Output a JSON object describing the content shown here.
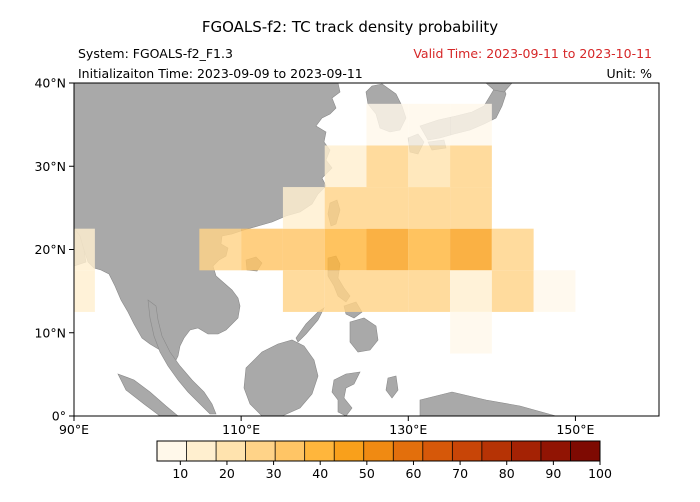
{
  "title": "FGOALS-f2: TC track density probability",
  "system": "System: FGOALS-f2_F1.3",
  "valid_time": "Valid Time: 2023-09-11 to 2023-10-11",
  "init_time": "Initializaiton Time: 2023-09-09 to 2023-09-11",
  "unit": "Unit: %",
  "colors": {
    "land": "#a9a9a9",
    "valid_time": "#d62728"
  },
  "chart_data": {
    "type": "heatmap",
    "x_axis": {
      "range": [
        90,
        160
      ],
      "ticks": [
        90,
        110,
        130,
        150
      ],
      "tick_labels": [
        "90°E",
        "110°E",
        "130°E",
        "150°E"
      ]
    },
    "y_axis": {
      "range": [
        0,
        40
      ],
      "ticks": [
        0,
        10,
        20,
        30,
        40
      ],
      "tick_labels": [
        "0°",
        "10°N",
        "20°N",
        "30°N",
        "40°N"
      ]
    },
    "grid": false,
    "cell_size_deg": 5,
    "cells": [
      {
        "lon": 90,
        "lat": 15,
        "value": 12
      },
      {
        "lon": 90,
        "lat": 20,
        "value": 12
      },
      {
        "lon": 107.5,
        "lat": 20,
        "value": 30
      },
      {
        "lon": 112.5,
        "lat": 20,
        "value": 35
      },
      {
        "lon": 117.5,
        "lat": 20,
        "value": 35
      },
      {
        "lon": 122.5,
        "lat": 20,
        "value": 40
      },
      {
        "lon": 127.5,
        "lat": 20,
        "value": 45
      },
      {
        "lon": 132.5,
        "lat": 20,
        "value": 40
      },
      {
        "lon": 137.5,
        "lat": 20,
        "value": 45
      },
      {
        "lon": 142.5,
        "lat": 20,
        "value": 30
      },
      {
        "lon": 117.5,
        "lat": 15,
        "value": 25
      },
      {
        "lon": 122.5,
        "lat": 15,
        "value": 30
      },
      {
        "lon": 127.5,
        "lat": 15,
        "value": 25
      },
      {
        "lon": 132.5,
        "lat": 15,
        "value": 25
      },
      {
        "lon": 137.5,
        "lat": 15,
        "value": 15
      },
      {
        "lon": 142.5,
        "lat": 15,
        "value": 25
      },
      {
        "lon": 147.5,
        "lat": 15,
        "value": 10
      },
      {
        "lon": 117.5,
        "lat": 25,
        "value": 15
      },
      {
        "lon": 122.5,
        "lat": 25,
        "value": 30
      },
      {
        "lon": 127.5,
        "lat": 25,
        "value": 30
      },
      {
        "lon": 132.5,
        "lat": 25,
        "value": 30
      },
      {
        "lon": 137.5,
        "lat": 25,
        "value": 30
      },
      {
        "lon": 122.5,
        "lat": 30,
        "value": 15
      },
      {
        "lon": 127.5,
        "lat": 30,
        "value": 25
      },
      {
        "lon": 132.5,
        "lat": 30,
        "value": 20
      },
      {
        "lon": 137.5,
        "lat": 30,
        "value": 25
      },
      {
        "lon": 127.5,
        "lat": 35,
        "value": 10
      },
      {
        "lon": 132.5,
        "lat": 35,
        "value": 10
      },
      {
        "lon": 137.5,
        "lat": 35,
        "value": 10
      },
      {
        "lon": 137.5,
        "lat": 10,
        "value": 10
      }
    ],
    "colorbar": {
      "ticks": [
        10,
        20,
        30,
        40,
        50,
        60,
        70,
        80,
        90,
        100
      ],
      "range": [
        5,
        100
      ],
      "colors": [
        "#fff8ea",
        "#ffefcf",
        "#ffe3ae",
        "#ffd388",
        "#ffc565",
        "#ffb63c",
        "#f9a01b",
        "#f08a12",
        "#e36f0c",
        "#d65809",
        "#c84507",
        "#b63305",
        "#a42204",
        "#911403",
        "#7e0a02"
      ]
    }
  }
}
